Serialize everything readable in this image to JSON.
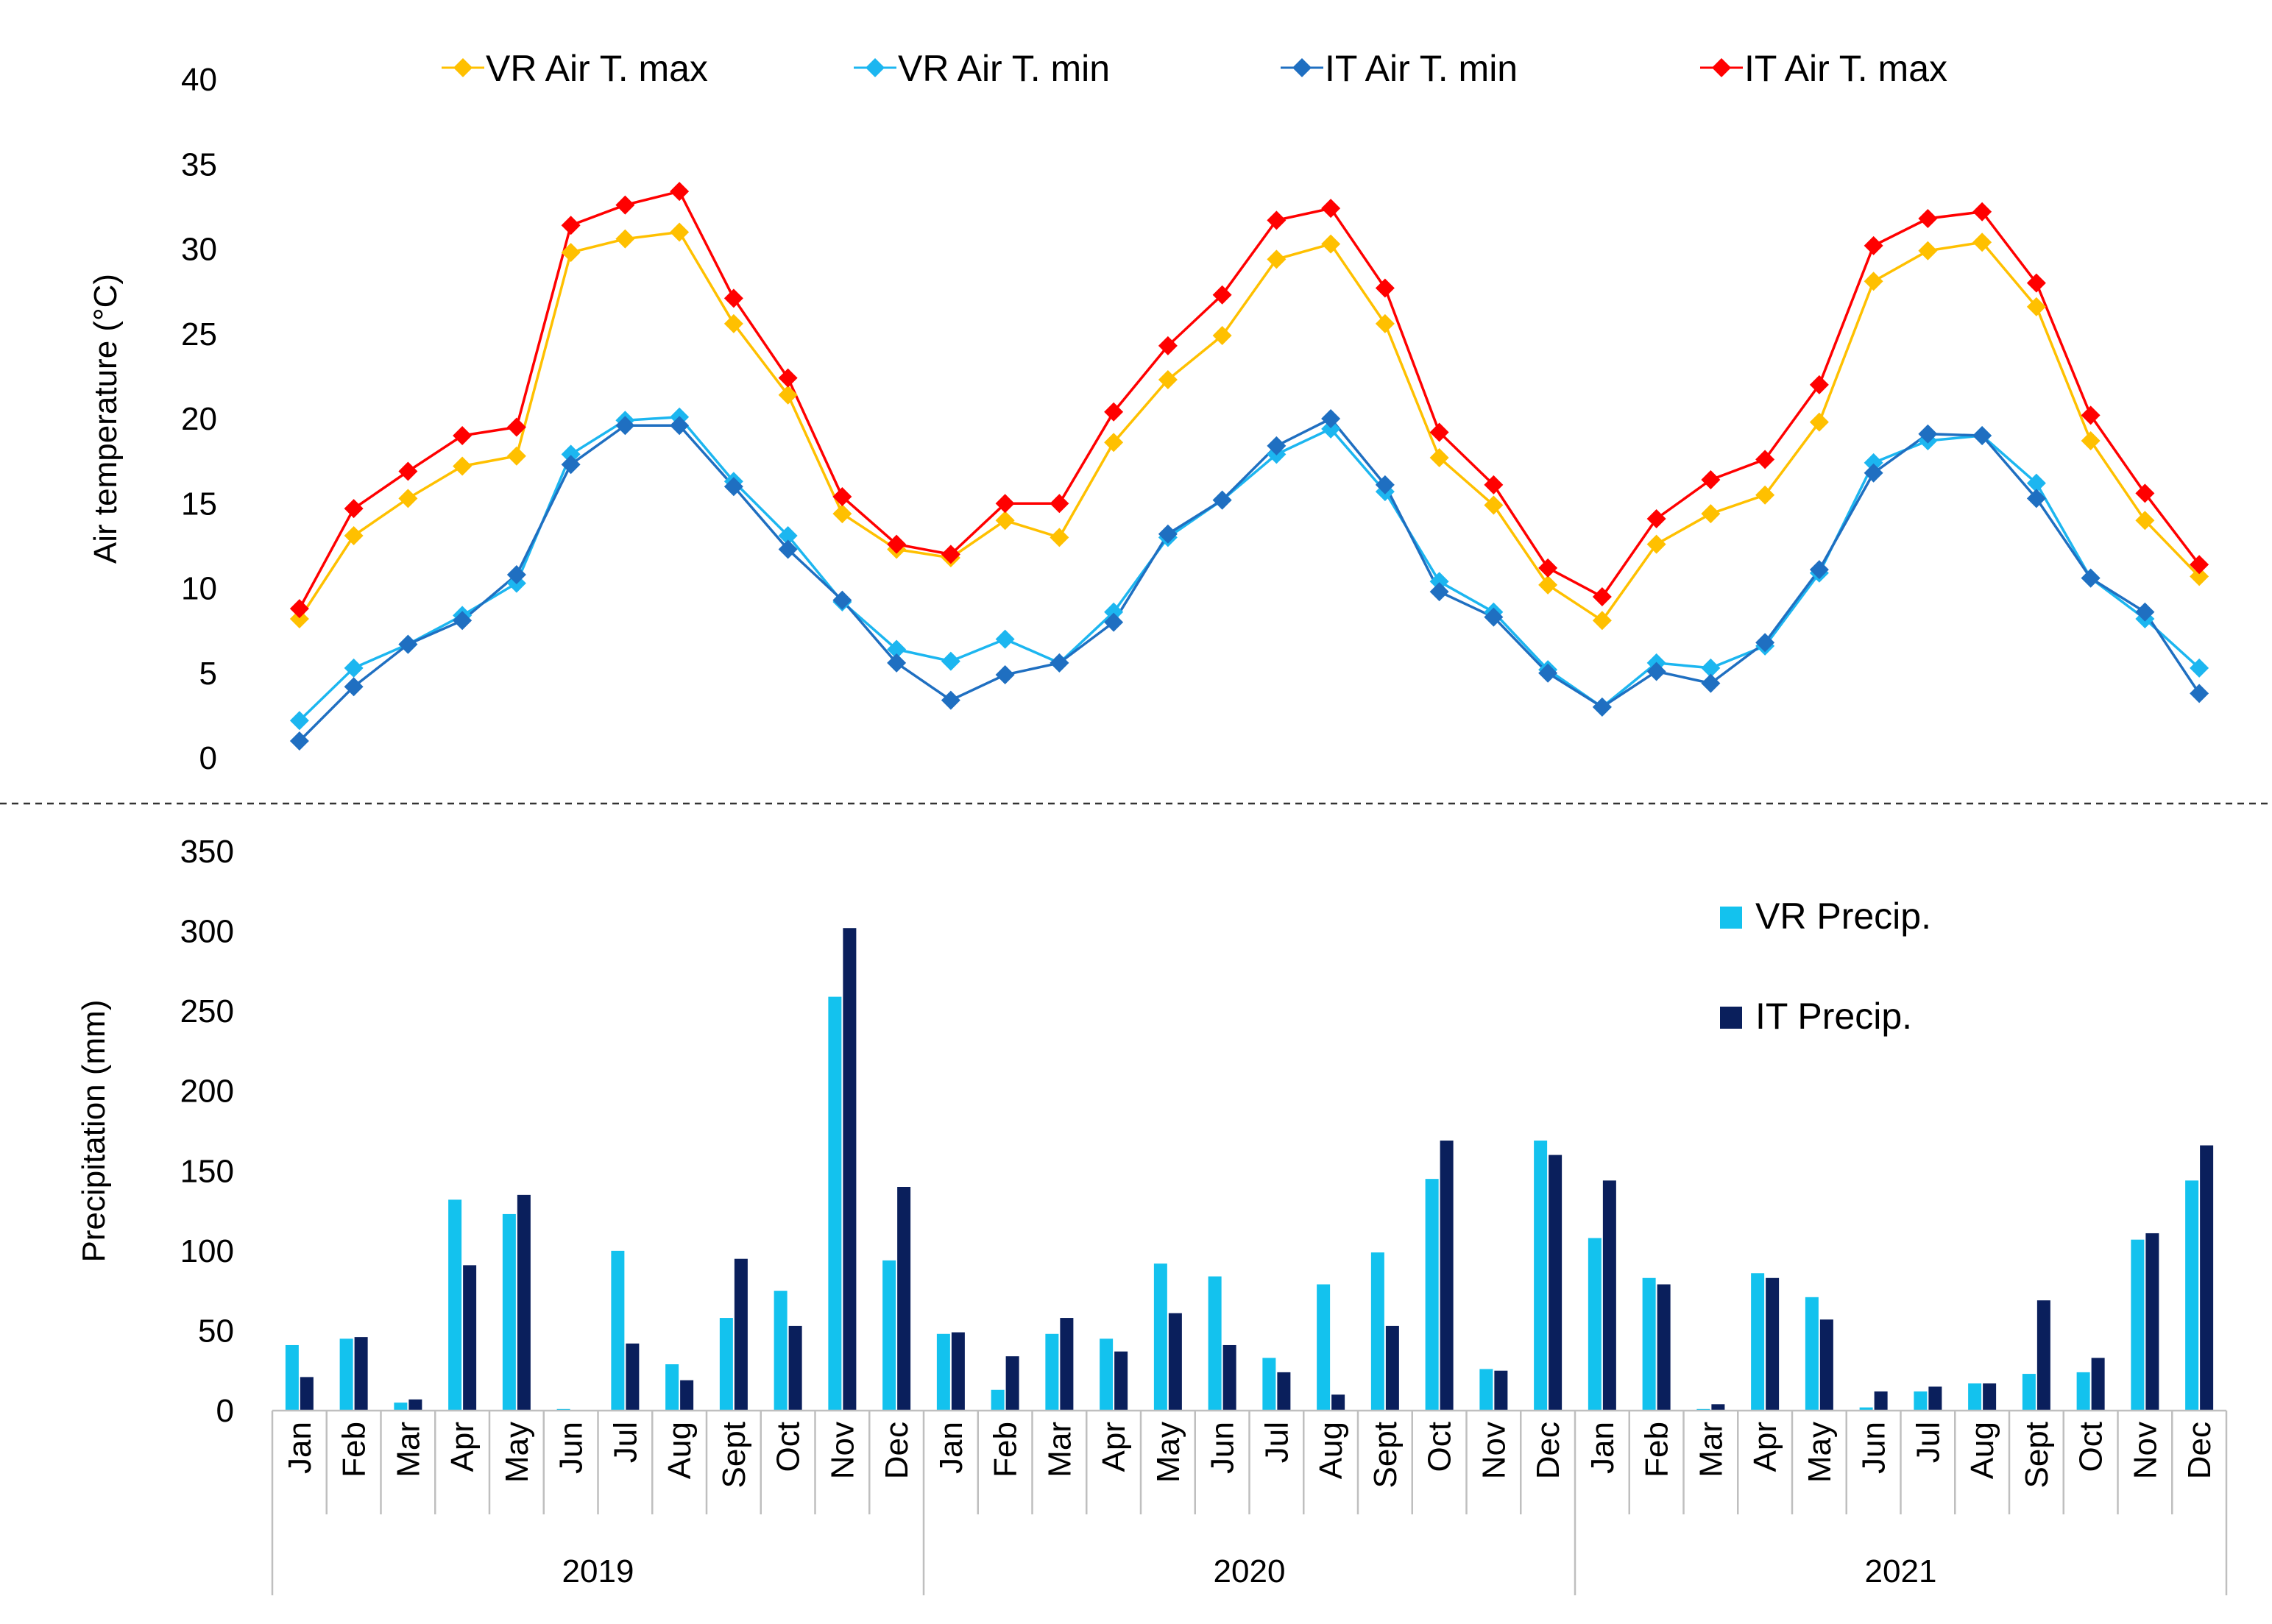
{
  "chart_data": [
    {
      "type": "line",
      "title": "",
      "xlabel": "",
      "ylabel": "Air temperature (°C)",
      "ylim": [
        0,
        40
      ],
      "yticks": [
        "0",
        "5",
        "10",
        "15",
        "20",
        "25",
        "30",
        "35",
        "40"
      ],
      "legend_position": "top",
      "grid": false,
      "series": [
        {
          "name": "VR Air T. max",
          "color": "#FFC000",
          "values": [
            8.2,
            13.1,
            15.3,
            17.2,
            17.8,
            29.8,
            30.6,
            31.0,
            25.6,
            21.4,
            14.4,
            12.3,
            11.8,
            14.0,
            13.0,
            18.6,
            22.3,
            24.9,
            29.4,
            30.3,
            25.6,
            17.7,
            14.9,
            10.2,
            8.1,
            12.6,
            14.4,
            15.5,
            19.8,
            28.1,
            29.9,
            30.4,
            26.6,
            18.7,
            14.0,
            10.7
          ]
        },
        {
          "name": "VR Air T. min",
          "color": "#1CB6F0",
          "values": [
            2.2,
            5.3,
            6.7,
            8.4,
            10.3,
            17.9,
            19.9,
            20.1,
            16.3,
            13.1,
            9.2,
            6.4,
            5.7,
            7.0,
            5.6,
            8.6,
            13.0,
            15.2,
            17.9,
            19.4,
            15.7,
            10.4,
            8.6,
            5.2,
            3.0,
            5.6,
            5.3,
            6.6,
            10.9,
            17.4,
            18.7,
            19.0,
            16.2,
            10.6,
            8.2,
            5.3
          ]
        },
        {
          "name": "IT Air T. min",
          "color": "#1F6FC1",
          "values": [
            1.0,
            4.2,
            6.7,
            8.1,
            10.8,
            17.3,
            19.6,
            19.6,
            16.0,
            12.3,
            9.3,
            5.6,
            3.4,
            4.9,
            5.6,
            8.0,
            13.2,
            15.2,
            18.4,
            20.0,
            16.1,
            9.8,
            8.3,
            5.0,
            3.0,
            5.1,
            4.4,
            6.8,
            11.1,
            16.8,
            19.1,
            19.0,
            15.3,
            10.6,
            8.6,
            3.8
          ]
        },
        {
          "name": "IT Air T. max",
          "color": "#FF0000",
          "values": [
            8.8,
            14.7,
            16.9,
            19.0,
            19.5,
            31.4,
            32.6,
            33.4,
            27.1,
            22.4,
            15.4,
            12.6,
            12.0,
            15.0,
            15.0,
            20.4,
            24.3,
            27.3,
            31.7,
            32.4,
            27.7,
            19.2,
            16.1,
            11.2,
            9.5,
            14.1,
            16.4,
            17.6,
            22.0,
            30.2,
            31.8,
            32.2,
            28.0,
            20.2,
            15.6,
            11.4
          ]
        }
      ]
    },
    {
      "type": "bar",
      "title": "",
      "xlabel": "",
      "ylabel": "Precipitation (mm)",
      "ylim": [
        0,
        350
      ],
      "yticks": [
        "0",
        "50",
        "100",
        "150",
        "200",
        "250",
        "300",
        "350"
      ],
      "legend_position": "right",
      "grid": false,
      "series": [
        {
          "name": "VR Precip.",
          "color": "#13C2EE",
          "values": [
            41,
            45,
            5,
            132,
            123,
            1,
            100,
            29,
            58,
            75,
            259,
            94,
            48,
            13,
            48,
            45,
            92,
            84,
            33,
            79,
            99,
            145,
            26,
            169,
            108,
            83,
            1,
            86,
            71,
            2,
            12,
            17,
            23,
            24,
            107,
            144
          ]
        },
        {
          "name": "IT Precip.",
          "color": "#0A1F5C",
          "values": [
            21,
            46,
            7,
            91,
            135,
            0,
            42,
            19,
            95,
            53,
            302,
            140,
            49,
            34,
            58,
            37,
            61,
            41,
            24,
            10,
            53,
            169,
            25,
            160,
            144,
            79,
            4,
            83,
            57,
            12,
            15,
            17,
            69,
            33,
            111,
            166
          ]
        }
      ]
    }
  ],
  "x_axis": {
    "months": [
      "Jan",
      "Feb",
      "Mar",
      "Apr",
      "May",
      "Jun",
      "Jul",
      "Aug",
      "Sept",
      "Oct",
      "Nov",
      "Dec"
    ],
    "years": [
      "2019",
      "2020",
      "2021"
    ]
  }
}
